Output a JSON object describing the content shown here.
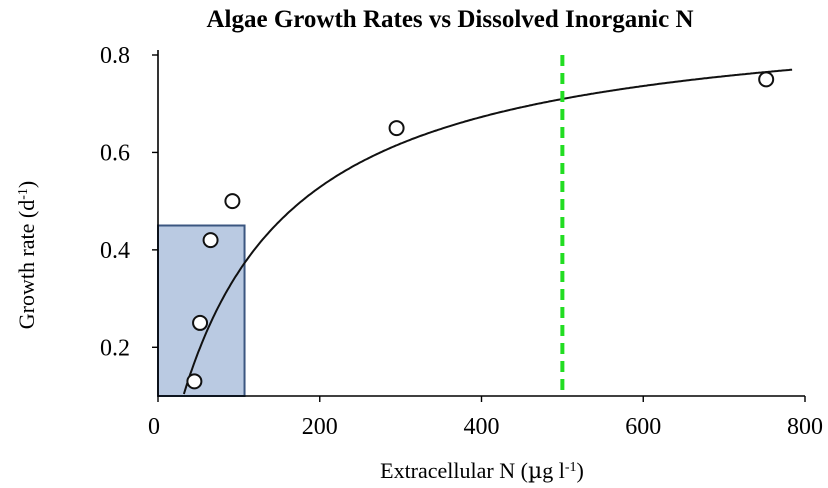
{
  "chart_data": {
    "type": "scatter",
    "title": "Algae Growth Rates vs Dissolved Inorganic N",
    "xlabel": "Extracellular N (µg l-1)",
    "ylabel": "Growth rate (d-1)",
    "xlim": [
      0,
      800
    ],
    "ylim": [
      0.1,
      0.8
    ],
    "xticks": [
      "0",
      "200",
      "400",
      "600",
      "800"
    ],
    "yticks": [
      "0.2",
      "0.4",
      "0.6",
      "0.8"
    ],
    "grid": false,
    "legend": "none",
    "points": [
      {
        "x": 45,
        "y": 0.13
      },
      {
        "x": 52,
        "y": 0.25
      },
      {
        "x": 65,
        "y": 0.42
      },
      {
        "x": 92,
        "y": 0.5
      },
      {
        "x": 295,
        "y": 0.65
      },
      {
        "x": 752,
        "y": 0.75
      }
    ],
    "fit_curve": {
      "model": "Monod",
      "umax": 0.9,
      "ks": 130,
      "x0": 15
    },
    "reference_line": {
      "x": 500,
      "color": "#22dd22",
      "style": "dashed"
    },
    "highlight_region": {
      "x": [
        0,
        107
      ],
      "y": [
        0.1,
        0.45
      ],
      "color": "#9db4d6"
    }
  }
}
